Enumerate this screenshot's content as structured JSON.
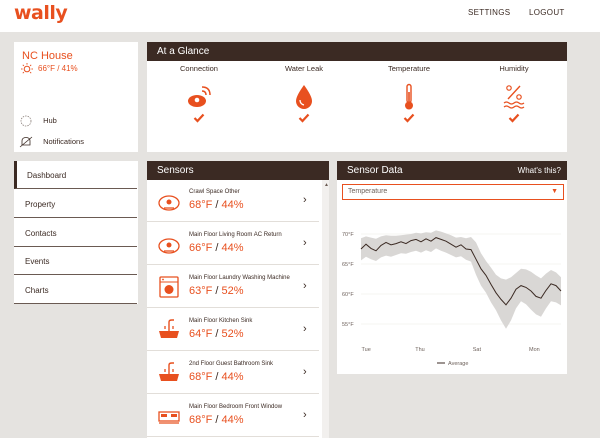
{
  "colors": {
    "accent": "#e8501f",
    "dark": "#3b2a23",
    "background": "#e5e3e0"
  },
  "header": {
    "logo": "wally",
    "nav": [
      {
        "label": "SETTINGS"
      },
      {
        "label": "LOGOUT"
      }
    ]
  },
  "house": {
    "name": "NC House",
    "summary": "66°F / 41%",
    "icon": "sun-icon",
    "hub_label": "Hub",
    "notifications_label": "Notifications"
  },
  "glance": {
    "title": "At a Glance",
    "items": [
      {
        "label": "Connection",
        "icon": "connection-icon",
        "status": "ok"
      },
      {
        "label": "Water Leak",
        "icon": "water-drop-icon",
        "status": "ok"
      },
      {
        "label": "Temperature",
        "icon": "thermometer-icon",
        "status": "ok"
      },
      {
        "label": "Humidity",
        "icon": "humidity-icon",
        "status": "ok"
      }
    ]
  },
  "sidebar": {
    "items": [
      {
        "label": "Dashboard",
        "active": true
      },
      {
        "label": "Property"
      },
      {
        "label": "Contacts"
      },
      {
        "label": "Events"
      },
      {
        "label": "Charts"
      }
    ]
  },
  "sensors": {
    "title": "Sensors",
    "items": [
      {
        "name": "Crawl Space Other",
        "temp": "68°F",
        "humidity": "44%",
        "icon": "sensor-puck-icon"
      },
      {
        "name": "Main Floor Living Room AC Return",
        "temp": "66°F",
        "humidity": "44%",
        "icon": "sensor-puck-icon"
      },
      {
        "name": "Main Floor Laundry Washing Machine",
        "temp": "63°F",
        "humidity": "52%",
        "icon": "washing-machine-icon"
      },
      {
        "name": "Main Floor Kitchen Sink",
        "temp": "64°F",
        "humidity": "52%",
        "icon": "sink-icon"
      },
      {
        "name": "2nd Floor Guest Bathroom Sink",
        "temp": "68°F",
        "humidity": "44%",
        "icon": "sink-icon"
      },
      {
        "name": "Main Floor Bedroom Front Window",
        "temp": "68°F",
        "humidity": "44%",
        "icon": "bed-icon"
      }
    ]
  },
  "sensor_data": {
    "title": "Sensor Data",
    "help_link": "What's this?",
    "select_value": "Temperature"
  },
  "chart_data": {
    "type": "line",
    "xlabel": "",
    "ylabel": "",
    "y_ticks": [
      "70°F",
      "65°F",
      "60°F",
      "55°F"
    ],
    "x_ticks": [
      "Tue",
      "Thu",
      "Sat",
      "Mon"
    ],
    "ylim": [
      52,
      73
    ],
    "legend": "Average",
    "series": [
      {
        "name": "Average",
        "x": [
          0,
          0.2,
          0.4,
          0.6,
          0.8,
          1.0,
          1.2,
          1.4,
          1.6,
          1.8,
          2.0,
          2.2,
          2.4,
          2.6,
          2.8,
          3.0,
          3.2,
          3.4,
          3.6,
          3.8,
          4.0,
          4.2,
          4.4,
          4.6,
          4.8,
          5.0,
          5.2,
          5.4,
          5.6,
          5.8,
          6.0,
          6.2,
          6.4,
          6.6,
          6.8,
          7.0,
          7.2,
          7.4,
          7.6,
          7.8,
          8.0
        ],
        "values": [
          67.5,
          68.3,
          67.6,
          67.2,
          68.1,
          68.6,
          68.2,
          68.4,
          68.7,
          68.4,
          68.9,
          69.1,
          68.7,
          69.2,
          68.8,
          69.4,
          69.1,
          68.8,
          68.3,
          67.8,
          68.2,
          67.5,
          67.4,
          65.8,
          64.2,
          63.1,
          61.6,
          60.2,
          59.1,
          58.2,
          59.3,
          60.8,
          61.4,
          61.1,
          60.5,
          59.6,
          59.3,
          60.6,
          61.7,
          61.4,
          60.5
        ]
      }
    ],
    "band": {
      "upper": [
        69.3,
        69.6,
        69.4,
        69.2,
        69.6,
        69.8,
        69.7,
        69.7,
        69.8,
        69.9,
        70.0,
        70.2,
        70.1,
        70.3,
        70.2,
        70.6,
        70.4,
        70.1,
        69.8,
        69.4,
        69.5,
        69.3,
        69.5,
        68.6,
        66.8,
        65.5,
        64.4,
        63.2,
        62.6,
        62.4,
        62.8,
        63.5,
        64.2,
        64.1,
        63.7,
        63.1,
        62.6,
        63.4,
        64.0,
        63.6,
        62.8
      ],
      "lower": [
        65.6,
        66.2,
        65.8,
        65.5,
        66.1,
        66.4,
        66.2,
        66.5,
        66.8,
        66.7,
        67.0,
        67.2,
        66.9,
        67.3,
        67.0,
        67.6,
        67.2,
        66.9,
        66.5,
        66.1,
        66.3,
        65.7,
        65.4,
        63.2,
        61.4,
        60.2,
        58.6,
        57.3,
        55.6,
        54.2,
        55.6,
        57.6,
        58.8,
        58.3,
        57.4,
        56.6,
        56.2,
        57.6,
        58.8,
        58.6,
        58.1
      ]
    }
  }
}
